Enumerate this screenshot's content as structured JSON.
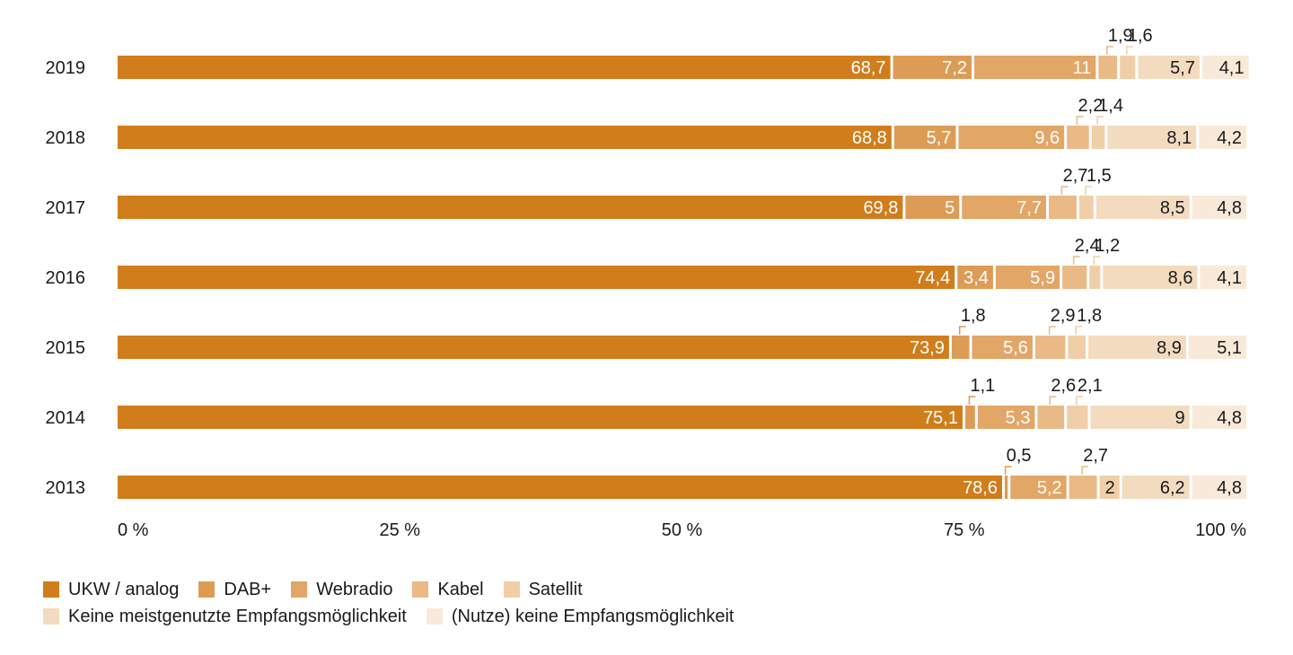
{
  "chart_data": {
    "type": "bar",
    "orientation": "horizontal",
    "stacked": true,
    "categories": [
      "2019",
      "2018",
      "2017",
      "2016",
      "2015",
      "2014",
      "2013"
    ],
    "series": [
      {
        "name": "UKW / analog",
        "color": "#d07d1b",
        "values": [
          68.7,
          68.8,
          69.8,
          74.4,
          73.9,
          75.1,
          78.6
        ],
        "labels": [
          "68,7",
          "68,8",
          "69,8",
          "74,4",
          "73,9",
          "75,1",
          "78,6"
        ]
      },
      {
        "name": "DAB+",
        "color": "#dd9c55",
        "values": [
          7.2,
          5.7,
          5.0,
          3.4,
          1.8,
          1.1,
          0.5
        ],
        "labels": [
          "7,2",
          "5,7",
          "5",
          "3,4",
          "1,8",
          "1,1",
          "0,5"
        ]
      },
      {
        "name": "Webradio",
        "color": "#e2a667",
        "values": [
          11.0,
          9.6,
          7.7,
          5.9,
          5.6,
          5.3,
          5.2
        ],
        "labels": [
          "11",
          "9,6",
          "7,7",
          "5,9",
          "5,6",
          "5,3",
          "5,2"
        ]
      },
      {
        "name": "Kabel",
        "color": "#e9ba86",
        "values": [
          1.9,
          2.2,
          2.7,
          2.4,
          2.9,
          2.6,
          2.7
        ],
        "labels": [
          "1,9",
          "2,2",
          "2,7",
          "2,4",
          "2,9",
          "2,6",
          "2,7"
        ]
      },
      {
        "name": "Satellit",
        "color": "#f0cfa8",
        "values": [
          1.6,
          1.4,
          1.5,
          1.2,
          1.8,
          2.1,
          2.0
        ],
        "labels": [
          "1,6",
          "1,4",
          "1,5",
          "1,2",
          "1,8",
          "2,1",
          "2"
        ]
      },
      {
        "name": "Keine meistgenutzte Empfangsmöglichkeit",
        "color": "#f3dbbf",
        "values": [
          5.7,
          8.1,
          8.5,
          8.6,
          8.9,
          9.0,
          6.2
        ],
        "labels": [
          "5,7",
          "8,1",
          "8,5",
          "8,6",
          "8,9",
          "9",
          "6,2"
        ]
      },
      {
        "name": "(Nutze) keine Empfangsmöglichkeit",
        "color": "#f8e9d8",
        "values": [
          4.1,
          4.2,
          4.8,
          4.1,
          5.1,
          4.8,
          4.8
        ],
        "labels": [
          "4,1",
          "4,2",
          "4,8",
          "4,1",
          "5,1",
          "4,8",
          "4,8"
        ]
      }
    ],
    "xticks": [
      0,
      25,
      50,
      75,
      100
    ],
    "xtick_labels": [
      "0 %",
      "25 %",
      "50 %",
      "75 %",
      "100 %"
    ],
    "xlim": [
      0,
      100
    ],
    "grid": false,
    "legend_position": "bottom-left",
    "title": "",
    "xlabel": "",
    "ylabel": ""
  }
}
